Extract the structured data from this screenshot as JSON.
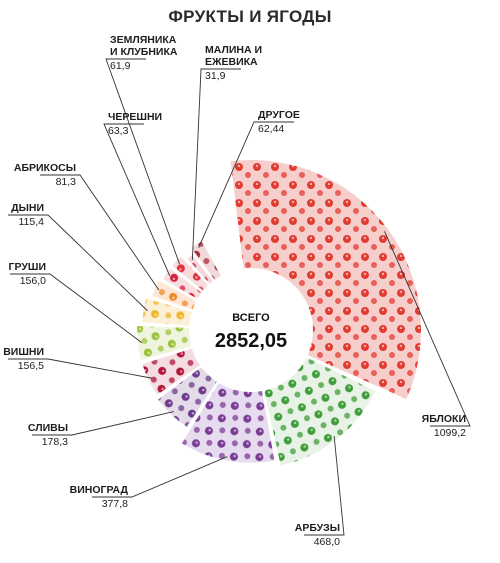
{
  "chart_data": {
    "type": "pie",
    "title": "ФРУКТЫ И ЯГОДЫ",
    "total_label": "ВСЕГО",
    "total_value": "2852,05",
    "slices": [
      {
        "label": "ЯБЛОКИ",
        "value": 1099.2,
        "value_text": "1099,2",
        "color": "#e23b32",
        "fill_color": "#f6cfcd"
      },
      {
        "label": "АРБУЗЫ",
        "value": 468.0,
        "value_text": "468,0",
        "color": "#3f9d3a",
        "fill_color": "#e9f2e6"
      },
      {
        "label": "ВИНОГРАД",
        "value": 377.8,
        "value_text": "377,8",
        "color": "#7a3d93",
        "fill_color": "#e7dcef"
      },
      {
        "label": "СЛИВЫ",
        "value": 178.3,
        "value_text": "178,3",
        "color": "#6e3b8c",
        "fill_color": "#e4dbe9"
      },
      {
        "label": "ВИШНИ",
        "value": 156.5,
        "value_text": "156,5",
        "color": "#b0173a",
        "fill_color": "#f3dde2"
      },
      {
        "label": "ГРУШИ",
        "value": 156.0,
        "value_text": "156,0",
        "color": "#9cc23a",
        "fill_color": "#eef4dd"
      },
      {
        "label": "ДЫНИ",
        "value": 115.4,
        "value_text": "115,4",
        "color": "#f3b52c",
        "fill_color": "#fcf0d6"
      },
      {
        "label": "АБРИКОСЫ",
        "value": 81.3,
        "value_text": "81,3",
        "color": "#ef8a2a",
        "fill_color": "#fde6d3"
      },
      {
        "label": "ЧЕРЕШНИ",
        "value": 63.3,
        "value_text": "63,3",
        "color": "#d4203e",
        "fill_color": "#f8dde1"
      },
      {
        "label": "ЗЕМЛЯНИКА И КЛУБНИКА",
        "label_lines": [
          "ЗЕМЛЯНИКА",
          "И КЛУБНИКА"
        ],
        "value": 61.9,
        "value_text": "61,9",
        "color": "#e0313e",
        "fill_color": "#f8dadd"
      },
      {
        "label": "МАЛИНА И ЕЖЕВИКА",
        "label_lines": [
          "МАЛИНА И",
          "ЕЖЕВИКА"
        ],
        "value": 31.9,
        "value_text": "31,9",
        "color": "#c41f3e",
        "fill_color": "#f4d6dc"
      },
      {
        "label": "ДРУГОЕ",
        "value": 62.44,
        "value_text": "62,44",
        "color": "#a92a3a",
        "fill_color": "#f0d8dc"
      }
    ],
    "legend": "none"
  }
}
